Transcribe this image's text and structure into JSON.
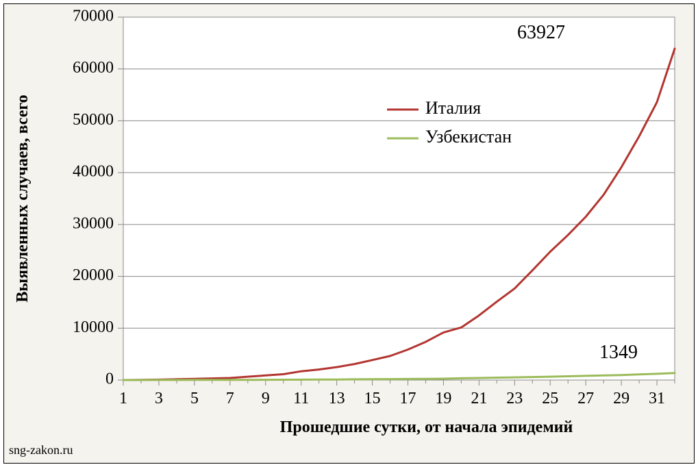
{
  "chart": {
    "type": "line",
    "background_color": "#f5f3ed",
    "border_color": "#000000",
    "border_width": 1,
    "plot_background": "#ffffff",
    "plot_border_color": "#888888",
    "plot_border_width": 1,
    "grid_color": "#888888",
    "grid_width": 1,
    "axis_font_color": "#000000",
    "tick_label_fontsize": 24,
    "axis_title_fontsize": 24,
    "axis_title_weight": "bold",
    "x_axis": {
      "label": "Прошедшие сутки, от начала эпидемий",
      "min": 1,
      "max": 32,
      "tick_start": 1,
      "tick_step": 2,
      "tick_end": 31,
      "major_tick_len": 8,
      "minor_tick_len": 5,
      "tick_color": "#888888"
    },
    "y_axis": {
      "label": "Выявленных случаев, всего",
      "min": 0,
      "max": 70000,
      "tick_step": 10000,
      "tick_color": "#888888",
      "tick_len": 8
    },
    "series": [
      {
        "name": "Италия",
        "color": "#b23530",
        "line_width": 3,
        "end_label": "63927",
        "end_label_fontsize": 28,
        "data": [
          [
            1,
            3
          ],
          [
            2,
            20
          ],
          [
            3,
            79
          ],
          [
            4,
            155
          ],
          [
            5,
            229
          ],
          [
            6,
            322
          ],
          [
            7,
            400
          ],
          [
            8,
            650
          ],
          [
            9,
            888
          ],
          [
            10,
            1128
          ],
          [
            11,
            1694
          ],
          [
            12,
            2036
          ],
          [
            13,
            2502
          ],
          [
            14,
            3089
          ],
          [
            15,
            3858
          ],
          [
            16,
            4636
          ],
          [
            17,
            5883
          ],
          [
            18,
            7375
          ],
          [
            19,
            9172
          ],
          [
            20,
            10149
          ],
          [
            21,
            12462
          ],
          [
            22,
            15113
          ],
          [
            23,
            17660
          ],
          [
            24,
            21157
          ],
          [
            25,
            24747
          ],
          [
            26,
            27980
          ],
          [
            27,
            31506
          ],
          [
            28,
            35713
          ],
          [
            29,
            41035
          ],
          [
            30,
            47021
          ],
          [
            31,
            53578
          ],
          [
            32,
            63927
          ]
        ]
      },
      {
        "name": "Узбекистан",
        "color": "#9bbb59",
        "line_width": 3,
        "end_label": "1349",
        "end_label_fontsize": 28,
        "data": [
          [
            1,
            1
          ],
          [
            2,
            4
          ],
          [
            3,
            8
          ],
          [
            4,
            15
          ],
          [
            5,
            23
          ],
          [
            6,
            33
          ],
          [
            7,
            43
          ],
          [
            8,
            46
          ],
          [
            9,
            55
          ],
          [
            10,
            65
          ],
          [
            11,
            75
          ],
          [
            12,
            88
          ],
          [
            13,
            104
          ],
          [
            14,
            144
          ],
          [
            15,
            172
          ],
          [
            16,
            181
          ],
          [
            17,
            205
          ],
          [
            18,
            227
          ],
          [
            19,
            266
          ],
          [
            20,
            342
          ],
          [
            21,
            390
          ],
          [
            22,
            457
          ],
          [
            23,
            520
          ],
          [
            24,
            582
          ],
          [
            25,
            650
          ],
          [
            26,
            720
          ],
          [
            27,
            800
          ],
          [
            28,
            880
          ],
          [
            29,
            970
          ],
          [
            30,
            1080
          ],
          [
            31,
            1200
          ],
          [
            32,
            1349
          ]
        ]
      }
    ],
    "legend": {
      "fontsize": 26,
      "dash_len": 46,
      "line_width": 3,
      "text_color": "#000000"
    },
    "footer": {
      "text": "sng-zakon.ru",
      "fontsize": 18,
      "color": "#000000"
    }
  }
}
